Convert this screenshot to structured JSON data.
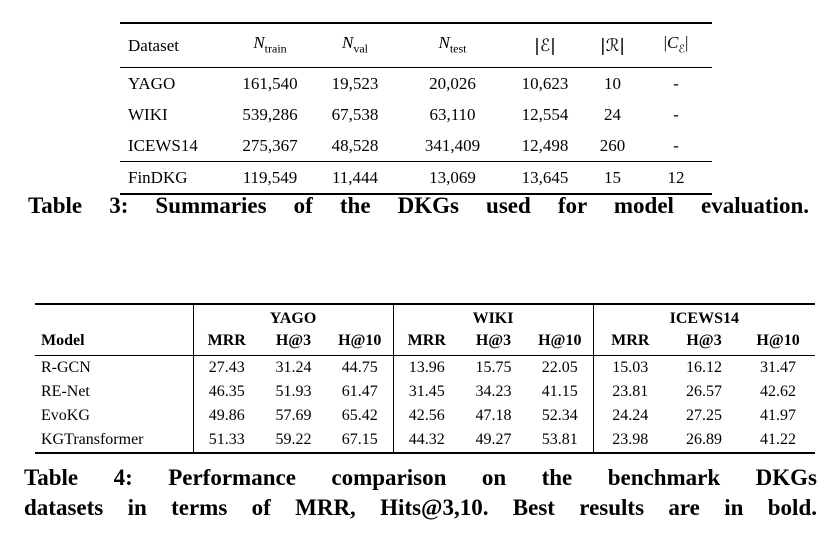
{
  "table3": {
    "headers": {
      "dataset": "Dataset",
      "n_symbol": "N",
      "sub_train": "train",
      "sub_val": "val",
      "sub_test": "test",
      "num_entities": "|ℰ|",
      "num_relations": "|ℛ|",
      "cat_open": "|",
      "cat_symbol": "C",
      "cat_sub": "ℰ",
      "cat_close": "|"
    },
    "rows": [
      {
        "rule_above": false,
        "cells": [
          "YAGO",
          "161,540",
          "19,523",
          "20,026",
          "10,623",
          "10",
          "-"
        ]
      },
      {
        "rule_above": false,
        "cells": [
          "WIKI",
          "539,286",
          "67,538",
          "63,110",
          "12,554",
          "24",
          "-"
        ]
      },
      {
        "rule_above": false,
        "cells": [
          "ICEWS14",
          "275,367",
          "48,528",
          "341,409",
          "12,498",
          "260",
          "-"
        ]
      },
      {
        "rule_above": true,
        "cells": [
          "FinDKG",
          "119,549",
          "11,444",
          "13,069",
          "13,645",
          "15",
          "12"
        ]
      }
    ],
    "caption": "Table 3: Summaries of the DKGs used for model evaluation."
  },
  "table4": {
    "model_header": "Model",
    "groups": [
      "YAGO",
      "WIKI",
      "ICEWS14"
    ],
    "metrics": [
      "MRR",
      "H@3",
      "H@10"
    ],
    "rows": [
      {
        "model": "R-GCN",
        "model_bold": false,
        "values": [
          "27.43",
          "31.24",
          "44.75",
          "13.96",
          "15.75",
          "22.05",
          "15.03",
          "16.12",
          "31.47"
        ],
        "bold": [
          0,
          0,
          0,
          0,
          0,
          0,
          0,
          0,
          0
        ]
      },
      {
        "model": "RE-Net",
        "model_bold": false,
        "values": [
          "46.35",
          "51.93",
          "61.47",
          "31.45",
          "34.23",
          "41.15",
          "23.81",
          "26.57",
          "42.62"
        ],
        "bold": [
          0,
          0,
          0,
          0,
          0,
          0,
          0,
          0,
          1
        ]
      },
      {
        "model": "EvoKG",
        "model_bold": false,
        "values": [
          "49.86",
          "57.69",
          "65.42",
          "42.56",
          "47.18",
          "52.34",
          "24.24",
          "27.25",
          "41.97"
        ],
        "bold": [
          0,
          0,
          0,
          0,
          0,
          0,
          1,
          1,
          0
        ]
      },
      {
        "model": "KGTransformer",
        "model_bold": true,
        "values": [
          "51.33",
          "59.22",
          "67.15",
          "44.32",
          "49.27",
          "53.81",
          "23.98",
          "26.89",
          "41.22"
        ],
        "bold": [
          1,
          1,
          1,
          1,
          1,
          1,
          0,
          0,
          0
        ]
      }
    ],
    "caption_line1": "Table 4: Performance comparison on the benchmark DKGs",
    "caption_line2": "datasets in terms of MRR, Hits@3,10. Best results are in bold."
  }
}
